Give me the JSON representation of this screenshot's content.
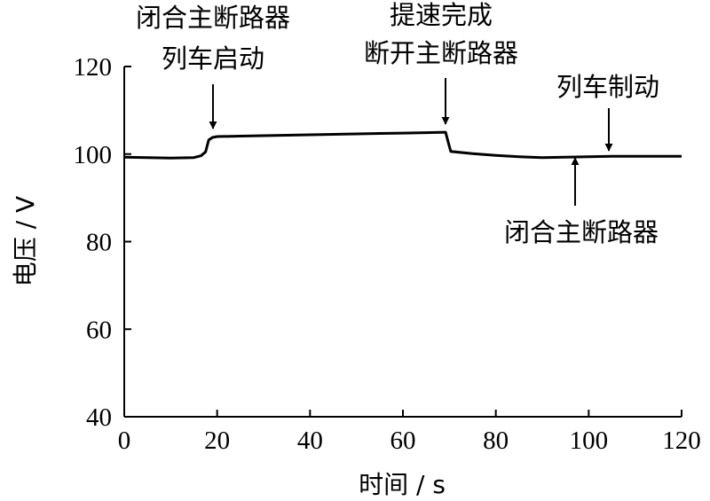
{
  "chart_data": {
    "type": "line",
    "xlabel": "时间 / s",
    "ylabel": "电压 / V",
    "xlim": [
      0,
      120
    ],
    "ylim": [
      40,
      120
    ],
    "xticks": [
      0,
      20,
      40,
      60,
      80,
      100,
      120
    ],
    "yticks": [
      40,
      60,
      80,
      100,
      120
    ],
    "grid": false,
    "series": [
      {
        "x": [
          0,
          5,
          10,
          15,
          16.5,
          17.5,
          18.2,
          19,
          20,
          25,
          30,
          35,
          40,
          45,
          50,
          55,
          60,
          65,
          69.2,
          69.8,
          70.3,
          75,
          80,
          85,
          90,
          95,
          100,
          105,
          110,
          115,
          120
        ],
        "y": [
          99.3,
          99.2,
          99.1,
          99.2,
          99.6,
          100.5,
          103.2,
          103.8,
          104.0,
          104.1,
          104.2,
          104.3,
          104.4,
          104.5,
          104.6,
          104.7,
          104.8,
          104.9,
          105.0,
          102.5,
          100.6,
          100.1,
          99.7,
          99.4,
          99.2,
          99.3,
          99.4,
          99.5,
          99.5,
          99.5,
          99.5
        ]
      }
    ],
    "annotations": [
      {
        "lines": [
          "闭合主断路器",
          "列车启动"
        ],
        "x": 20,
        "y": 104.0,
        "direction": "down"
      },
      {
        "lines": [
          "提速完成",
          "断开主断路器"
        ],
        "x": 69.5,
        "y": 105.0,
        "direction": "down"
      },
      {
        "lines": [
          "列车制动"
        ],
        "x": 104,
        "y": 99.6,
        "direction": "down"
      },
      {
        "lines": [
          "闭合主断路器"
        ],
        "x": 97,
        "y": 99.2,
        "direction": "up"
      }
    ]
  }
}
